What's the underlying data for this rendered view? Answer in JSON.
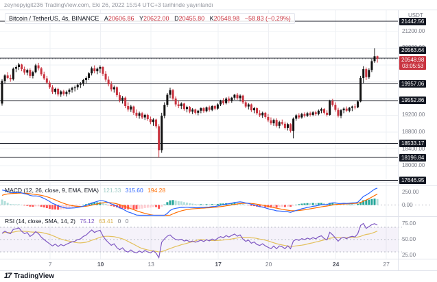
{
  "attribution": "zeynepyigit236 TradingView.com, Eki 26, 2022 15:54 UTC+3 tarihinde yayınlandı",
  "header": {
    "symbol": "Bitcoin / TetherUS, 4s, BINANCE",
    "fields": [
      {
        "label": "A",
        "value": "20606.86"
      },
      {
        "label": "Y",
        "value": "20622.00"
      },
      {
        "label": "D",
        "value": "20455.80"
      },
      {
        "label": "K",
        "value": "20548.98"
      }
    ],
    "change": "−58.83 (−0.29%)"
  },
  "price_axis": {
    "title": "USDT",
    "ticks": [
      {
        "label": "21200.00",
        "price": 21200
      },
      {
        "label": "20800.00",
        "price": 20800
      },
      {
        "label": "19200.00",
        "price": 19200
      },
      {
        "label": "18800.00",
        "price": 18800
      },
      {
        "label": "18400.00",
        "price": 18400
      },
      {
        "label": "18000.00",
        "price": 18000
      }
    ],
    "line_labels": [
      {
        "label": "21442.56",
        "price": 21442.56,
        "y": 31
      },
      {
        "label": "20563.64",
        "price": 20563.64,
        "y": 73
      },
      {
        "label": "19957.06",
        "price": 19957.06
      },
      {
        "label": "19552.86",
        "price": 19552.86
      },
      {
        "label": "18533.17",
        "price": 18533.17
      },
      {
        "label": "18196.84",
        "price": 18196.84
      },
      {
        "label": "17646.95",
        "price": 17646.95
      }
    ],
    "last_price": {
      "label": "20548.98",
      "price": 20548.98,
      "countdown": "03:05:53"
    }
  },
  "macd_panel": {
    "status_label": "MACD (12, 26, close, 9, EMA, EMA)",
    "values": [
      {
        "text": "121.33"
      },
      {
        "text": "315.60"
      },
      {
        "text": "194.28"
      }
    ],
    "ticks": [
      {
        "label": "250.00",
        "value": 250
      },
      {
        "label": "0.00",
        "value": 0
      }
    ]
  },
  "rsi_panel": {
    "status_label": "RSI (14, close, SMA, 14, 2)",
    "values": [
      {
        "text": "75.12"
      },
      {
        "text": "63.41"
      },
      {
        "text": "0"
      },
      {
        "text": "0"
      }
    ],
    "ticks": [
      {
        "label": "75.00",
        "value": 75
      },
      {
        "label": "50.00",
        "value": 50
      },
      {
        "label": "25.00",
        "value": 25
      }
    ],
    "band_levels": [
      70,
      30
    ],
    "mid_level": 50
  },
  "time_axis": {
    "ticks": [
      {
        "label": "7",
        "i": 17,
        "bold": false
      },
      {
        "label": "10",
        "i": 35,
        "bold": true
      },
      {
        "label": "13",
        "i": 53,
        "bold": false
      },
      {
        "label": "17",
        "i": 77,
        "bold": true
      },
      {
        "label": "20",
        "i": 95,
        "bold": false
      },
      {
        "label": "24",
        "i": 119,
        "bold": true
      },
      {
        "label": "27",
        "i": 137,
        "bold": false
      }
    ]
  },
  "footer": {
    "logo": "17",
    "brand": "TradingView"
  },
  "colors": {
    "up": "#111111",
    "down": "#c9333f",
    "macd_line": "#2962ff",
    "signal_line": "#ff6d00",
    "hist_grow_above": "#26a69a",
    "hist_fall_above": "#b2dfdb",
    "hist_fall_below": "#ff5252",
    "hist_grow_below": "#ffcdd2",
    "rsi_line": "#7e57c2",
    "rsi_ma": "#e3c05c",
    "rsi_band_fill": "rgba(126,87,194,0.08)",
    "label_bg": "#131722",
    "last_label_bg": "#c9333f",
    "grid": "#eef0f4",
    "separator": "#dfe2ea",
    "ray_line": "#1c1f2a"
  },
  "chart_data": {
    "type": "candlestick",
    "title": "Bitcoin / TetherUS",
    "exchange": "BINANCE",
    "interval": "4h",
    "quote": "USDT",
    "visible_dates_october_2022": [
      7,
      10,
      13,
      17,
      20,
      24,
      27
    ],
    "price_range_visible": [
      17530,
      21700
    ],
    "horizontal_lines": [
      21442.56,
      20563.64,
      19957.06,
      19552.86,
      18533.17,
      18196.84,
      17646.95
    ],
    "last_price": 20548.98,
    "ohlc": [
      [
        19480,
        20060,
        19430,
        20020
      ],
      [
        20020,
        20180,
        19960,
        20150
      ],
      [
        20150,
        20230,
        20060,
        20090
      ],
      [
        20090,
        20170,
        20000,
        20060
      ],
      [
        20060,
        20340,
        20030,
        20310
      ],
      [
        20310,
        20390,
        20230,
        20350
      ],
      [
        20350,
        20450,
        20280,
        20410
      ],
      [
        20410,
        20430,
        20250,
        20300
      ],
      [
        20300,
        20360,
        20170,
        20220
      ],
      [
        20220,
        20310,
        20150,
        20280
      ],
      [
        20280,
        20320,
        20090,
        20140
      ],
      [
        20140,
        20260,
        20080,
        20230
      ],
      [
        20230,
        20430,
        20200,
        20390
      ],
      [
        20390,
        20450,
        20270,
        20320
      ],
      [
        20320,
        20350,
        20140,
        20180
      ],
      [
        20180,
        20240,
        20040,
        20080
      ],
      [
        20080,
        20140,
        19940,
        19980
      ],
      [
        19980,
        20030,
        19830,
        19870
      ],
      [
        19870,
        19920,
        19710,
        19760
      ],
      [
        19760,
        19860,
        19700,
        19830
      ],
      [
        19830,
        19860,
        19650,
        19700
      ],
      [
        19700,
        19800,
        19640,
        19770
      ],
      [
        19770,
        19810,
        19670,
        19710
      ],
      [
        19710,
        19790,
        19650,
        19760
      ],
      [
        19760,
        19840,
        19700,
        19810
      ],
      [
        19810,
        19880,
        19740,
        19850
      ],
      [
        19850,
        19910,
        19770,
        19870
      ],
      [
        19870,
        19960,
        19810,
        19930
      ],
      [
        19930,
        19990,
        19850,
        19950
      ],
      [
        19950,
        20070,
        19900,
        20040
      ],
      [
        20040,
        20130,
        19960,
        20090
      ],
      [
        20090,
        20230,
        20040,
        20200
      ],
      [
        20200,
        20360,
        20150,
        20320
      ],
      [
        20320,
        20390,
        20200,
        20250
      ],
      [
        20250,
        20340,
        20180,
        20310
      ],
      [
        20310,
        20390,
        20210,
        20350
      ],
      [
        20350,
        20370,
        20140,
        20190
      ],
      [
        20190,
        20250,
        20000,
        20050
      ],
      [
        20050,
        20130,
        19890,
        19940
      ],
      [
        19940,
        20010,
        19770,
        19820
      ],
      [
        19820,
        19910,
        19740,
        19870
      ],
      [
        19870,
        19890,
        19630,
        19680
      ],
      [
        19680,
        19750,
        19510,
        19560
      ],
      [
        19560,
        19660,
        19480,
        19620
      ],
      [
        19620,
        19650,
        19370,
        19420
      ],
      [
        19420,
        19510,
        19290,
        19340
      ],
      [
        19340,
        19450,
        19280,
        19410
      ],
      [
        19410,
        19430,
        19210,
        19260
      ],
      [
        19260,
        19340,
        19140,
        19190
      ],
      [
        19190,
        19290,
        19120,
        19250
      ],
      [
        19250,
        19280,
        19110,
        19150
      ],
      [
        19150,
        19240,
        19090,
        19210
      ],
      [
        19210,
        19240,
        19070,
        19110
      ],
      [
        19110,
        19170,
        18990,
        19040
      ],
      [
        19040,
        19130,
        18950,
        19100
      ],
      [
        19100,
        19120,
        18890,
        18940
      ],
      [
        18940,
        18990,
        18196.84,
        18370
      ],
      [
        18370,
        19260,
        18310,
        19190
      ],
      [
        19190,
        19510,
        19130,
        19450
      ],
      [
        19450,
        19730,
        19400,
        19690
      ],
      [
        19690,
        19860,
        19610,
        19800
      ],
      [
        19800,
        19830,
        19550,
        19600
      ],
      [
        19600,
        19650,
        19410,
        19460
      ],
      [
        19460,
        19550,
        19370,
        19420
      ],
      [
        19420,
        19510,
        19350,
        19480
      ],
      [
        19480,
        19500,
        19310,
        19350
      ],
      [
        19350,
        19430,
        19270,
        19400
      ],
      [
        19400,
        19420,
        19250,
        19290
      ],
      [
        19290,
        19370,
        19230,
        19340
      ],
      [
        19340,
        19360,
        19220,
        19260
      ],
      [
        19260,
        19330,
        19200,
        19310
      ],
      [
        19310,
        19390,
        19250,
        19370
      ],
      [
        19370,
        19400,
        19260,
        19300
      ],
      [
        19300,
        19410,
        19270,
        19390
      ],
      [
        19390,
        19430,
        19290,
        19330
      ],
      [
        19330,
        19440,
        19300,
        19420
      ],
      [
        19420,
        19450,
        19320,
        19360
      ],
      [
        19360,
        19490,
        19330,
        19460
      ],
      [
        19460,
        19570,
        19420,
        19540
      ],
      [
        19540,
        19610,
        19450,
        19490
      ],
      [
        19490,
        19630,
        19460,
        19600
      ],
      [
        19600,
        19650,
        19490,
        19540
      ],
      [
        19540,
        19640,
        19500,
        19620
      ],
      [
        19620,
        19710,
        19570,
        19690
      ],
      [
        19690,
        19730,
        19570,
        19610
      ],
      [
        19610,
        19700,
        19530,
        19670
      ],
      [
        19670,
        19690,
        19470,
        19510
      ],
      [
        19510,
        19560,
        19370,
        19410
      ],
      [
        19410,
        19490,
        19340,
        19460
      ],
      [
        19460,
        19480,
        19280,
        19320
      ],
      [
        19320,
        19400,
        19250,
        19370
      ],
      [
        19370,
        19390,
        19210,
        19250
      ],
      [
        19250,
        19320,
        19160,
        19200
      ],
      [
        19200,
        19290,
        19140,
        19260
      ],
      [
        19260,
        19280,
        19120,
        19160
      ],
      [
        19160,
        19230,
        19040,
        19080
      ],
      [
        19080,
        19150,
        18970,
        19010
      ],
      [
        19010,
        19120,
        18950,
        19090
      ],
      [
        19090,
        19130,
        18910,
        18950
      ],
      [
        18950,
        19070,
        18890,
        19040
      ],
      [
        19040,
        19100,
        18960,
        19000
      ],
      [
        19000,
        19050,
        18860,
        18900
      ],
      [
        18900,
        19020,
        18840,
        18990
      ],
      [
        18990,
        19010,
        18790,
        18830
      ],
      [
        18830,
        19150,
        18650,
        19120
      ],
      [
        19120,
        19230,
        19070,
        19200
      ],
      [
        19200,
        19250,
        19110,
        19150
      ],
      [
        19150,
        19260,
        19120,
        19230
      ],
      [
        19230,
        19270,
        19150,
        19190
      ],
      [
        19190,
        19280,
        19160,
        19250
      ],
      [
        19250,
        19290,
        19170,
        19210
      ],
      [
        19210,
        19300,
        19180,
        19270
      ],
      [
        19270,
        19310,
        19190,
        19230
      ],
      [
        19230,
        19340,
        19200,
        19310
      ],
      [
        19310,
        19380,
        19250,
        19350
      ],
      [
        19350,
        19370,
        19220,
        19260
      ],
      [
        19260,
        19320,
        19170,
        19210
      ],
      [
        19210,
        19570,
        19190,
        19540
      ],
      [
        19540,
        19590,
        19410,
        19450
      ],
      [
        19450,
        19510,
        19290,
        19330
      ],
      [
        19330,
        19380,
        19150,
        19190
      ],
      [
        19190,
        19350,
        19130,
        19320
      ],
      [
        19320,
        19390,
        19250,
        19360
      ],
      [
        19360,
        19410,
        19280,
        19310
      ],
      [
        19310,
        19400,
        19270,
        19380
      ],
      [
        19380,
        19430,
        19300,
        19410
      ],
      [
        19410,
        19470,
        19340,
        19390
      ],
      [
        19390,
        19560,
        19370,
        19530
      ],
      [
        19530,
        20140,
        19510,
        20090
      ],
      [
        20090,
        20370,
        19970,
        20300
      ],
      [
        20300,
        20340,
        20040,
        20110
      ],
      [
        20110,
        20320,
        20070,
        20280
      ],
      [
        20280,
        20550,
        20230,
        20490
      ],
      [
        20490,
        20800,
        20450,
        20607
      ],
      [
        20606.86,
        20622.0,
        20455.8,
        20548.98
      ]
    ],
    "indicators": {
      "macd": {
        "params": [
          12,
          26,
          "close",
          9,
          "EMA",
          "EMA"
        ],
        "last_histogram": 121.33,
        "last_macd": 315.6,
        "last_signal": 194.28,
        "axis_range_hint": [
          -210,
          360
        ]
      },
      "rsi": {
        "params": [
          14,
          "close",
          "SMA",
          14,
          2
        ],
        "last_rsi": 75.12,
        "last_ma": 63.41,
        "band": [
          70,
          30
        ]
      }
    }
  }
}
